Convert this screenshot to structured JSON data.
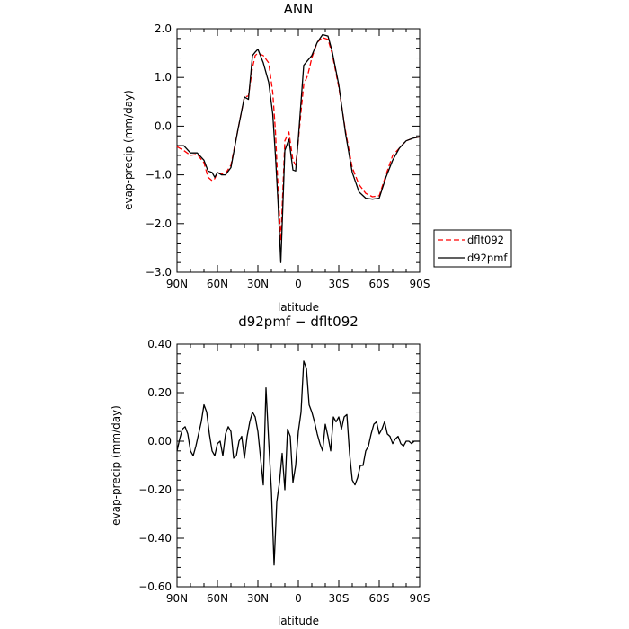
{
  "chart_data": [
    {
      "type": "line",
      "title": "ANN",
      "xlabel": "latitude",
      "ylabel": "evap-precip (mm/day)",
      "xlim": [
        90,
        -90
      ],
      "ylim": [
        -3.0,
        2.0
      ],
      "x_ticks": [
        90,
        60,
        30,
        0,
        -30,
        -60,
        -90
      ],
      "x_tick_labels": [
        "90N",
        "60N",
        "30N",
        "0",
        "30S",
        "60S",
        "90S"
      ],
      "y_ticks": [
        2.0,
        1.0,
        0.0,
        -1.0,
        -2.0,
        -3.0
      ],
      "y_tick_labels": [
        "2.0",
        "1.0",
        "0.0",
        "−1.0",
        "−2.0",
        "−3.0"
      ],
      "legend_placement": "right, outside plot",
      "series": [
        {
          "name": "dflt092",
          "color": "#ff0000",
          "dash": "dashed",
          "x": [
            90,
            85,
            80,
            75,
            70,
            67,
            64,
            62,
            60,
            57,
            54,
            50,
            45,
            40,
            37,
            34,
            32,
            30,
            26,
            22,
            19,
            17,
            15,
            13,
            10,
            7,
            4,
            2,
            0,
            -2,
            -4,
            -7,
            -10,
            -14,
            -18,
            -22,
            -25,
            -30,
            -35,
            -40,
            -45,
            -50,
            -55,
            -60,
            -65,
            -70,
            -75,
            -80,
            -85,
            -90
          ],
          "y": [
            -0.42,
            -0.5,
            -0.6,
            -0.58,
            -0.75,
            -1.05,
            -1.12,
            -1.08,
            -0.95,
            -0.98,
            -0.97,
            -0.8,
            -0.1,
            0.6,
            0.62,
            1.2,
            1.45,
            1.5,
            1.45,
            1.3,
            0.7,
            -0.1,
            -1.3,
            -2.35,
            -0.3,
            -0.12,
            -0.7,
            -0.8,
            -0.3,
            0.3,
            0.85,
            1.05,
            1.4,
            1.72,
            1.82,
            1.78,
            1.5,
            0.8,
            -0.1,
            -0.85,
            -1.2,
            -1.38,
            -1.45,
            -1.43,
            -1.0,
            -0.6,
            -0.45,
            -0.3,
            -0.25,
            -0.22
          ]
        },
        {
          "name": "d92pmf",
          "color": "#000000",
          "dash": "solid",
          "x": [
            90,
            85,
            80,
            75,
            70,
            67,
            64,
            62,
            60,
            57,
            54,
            50,
            45,
            40,
            37,
            34,
            32,
            30,
            26,
            22,
            19,
            17,
            15,
            13,
            10,
            7,
            4,
            2,
            0,
            -2,
            -4,
            -7,
            -10,
            -14,
            -18,
            -22,
            -25,
            -30,
            -35,
            -40,
            -45,
            -50,
            -55,
            -60,
            -65,
            -70,
            -75,
            -80,
            -85,
            -90
          ],
          "y": [
            -0.4,
            -0.4,
            -0.55,
            -0.55,
            -0.7,
            -0.92,
            -0.95,
            -1.05,
            -0.95,
            -1.0,
            -1.0,
            -0.85,
            -0.1,
            0.6,
            0.55,
            1.45,
            1.52,
            1.58,
            1.3,
            0.9,
            0.25,
            -0.6,
            -1.6,
            -2.8,
            -0.5,
            -0.27,
            -0.9,
            -0.92,
            -0.25,
            0.5,
            1.25,
            1.35,
            1.45,
            1.72,
            1.88,
            1.85,
            1.55,
            0.85,
            -0.15,
            -0.95,
            -1.35,
            -1.48,
            -1.5,
            -1.48,
            -1.05,
            -0.7,
            -0.45,
            -0.3,
            -0.25,
            -0.22
          ]
        }
      ]
    },
    {
      "type": "line",
      "title": "d92pmf − dflt092",
      "xlabel": "latitude",
      "ylabel": "evap-precip (mm/day)",
      "xlim": [
        90,
        -90
      ],
      "ylim": [
        -0.6,
        0.4
      ],
      "x_ticks": [
        90,
        60,
        30,
        0,
        -30,
        -60,
        -90
      ],
      "x_tick_labels": [
        "90N",
        "60N",
        "30N",
        "0",
        "30S",
        "60S",
        "90S"
      ],
      "y_ticks": [
        0.4,
        0.2,
        0.0,
        -0.2,
        -0.4,
        -0.6
      ],
      "y_tick_labels": [
        "0.40",
        "0.20",
        "0.00",
        "−0.20",
        "−0.40",
        "−0.60"
      ],
      "series": [
        {
          "color": "#000000",
          "dash": "solid",
          "x": [
            90,
            88,
            86,
            84,
            82,
            80,
            78,
            76,
            74,
            72,
            70,
            68,
            66,
            64,
            62,
            60,
            58,
            56,
            54,
            52,
            50,
            48,
            46,
            44,
            42,
            40,
            38,
            36,
            34,
            32,
            30,
            28,
            26,
            24,
            22,
            20,
            18,
            16,
            14,
            12,
            10,
            8,
            6,
            4,
            2,
            0,
            -2,
            -4,
            -6,
            -8,
            -10,
            -12,
            -14,
            -16,
            -18,
            -20,
            -22,
            -24,
            -26,
            -28,
            -30,
            -32,
            -34,
            -36,
            -38,
            -40,
            -42,
            -44,
            -46,
            -48,
            -50,
            -52,
            -54,
            -56,
            -58,
            -60,
            -62,
            -64,
            -66,
            -68,
            -70,
            -72,
            -74,
            -76,
            -78,
            -80,
            -82,
            -84,
            -86,
            -88,
            -90
          ],
          "y": [
            -0.04,
            0.01,
            0.05,
            0.06,
            0.03,
            -0.04,
            -0.06,
            -0.02,
            0.03,
            0.08,
            0.15,
            0.12,
            0.03,
            -0.04,
            -0.06,
            -0.01,
            0.0,
            -0.06,
            0.03,
            0.06,
            0.04,
            -0.07,
            -0.06,
            0.0,
            0.02,
            -0.07,
            0.02,
            0.08,
            0.12,
            0.1,
            0.04,
            -0.07,
            -0.18,
            0.22,
            0.0,
            -0.2,
            -0.51,
            -0.25,
            -0.17,
            -0.05,
            -0.2,
            0.05,
            0.02,
            -0.17,
            -0.1,
            0.04,
            0.12,
            0.33,
            0.3,
            0.15,
            0.12,
            0.08,
            0.03,
            -0.01,
            -0.04,
            0.07,
            0.02,
            -0.04,
            0.1,
            0.08,
            0.1,
            0.05,
            0.1,
            0.11,
            -0.05,
            -0.16,
            -0.18,
            -0.15,
            -0.1,
            -0.1,
            -0.04,
            -0.02,
            0.03,
            0.07,
            0.08,
            0.03,
            0.05,
            0.08,
            0.03,
            0.02,
            -0.01,
            0.01,
            0.02,
            -0.01,
            -0.02,
            0.0,
            0.0,
            -0.01,
            0.0,
            0.0,
            0.0
          ]
        }
      ]
    }
  ]
}
